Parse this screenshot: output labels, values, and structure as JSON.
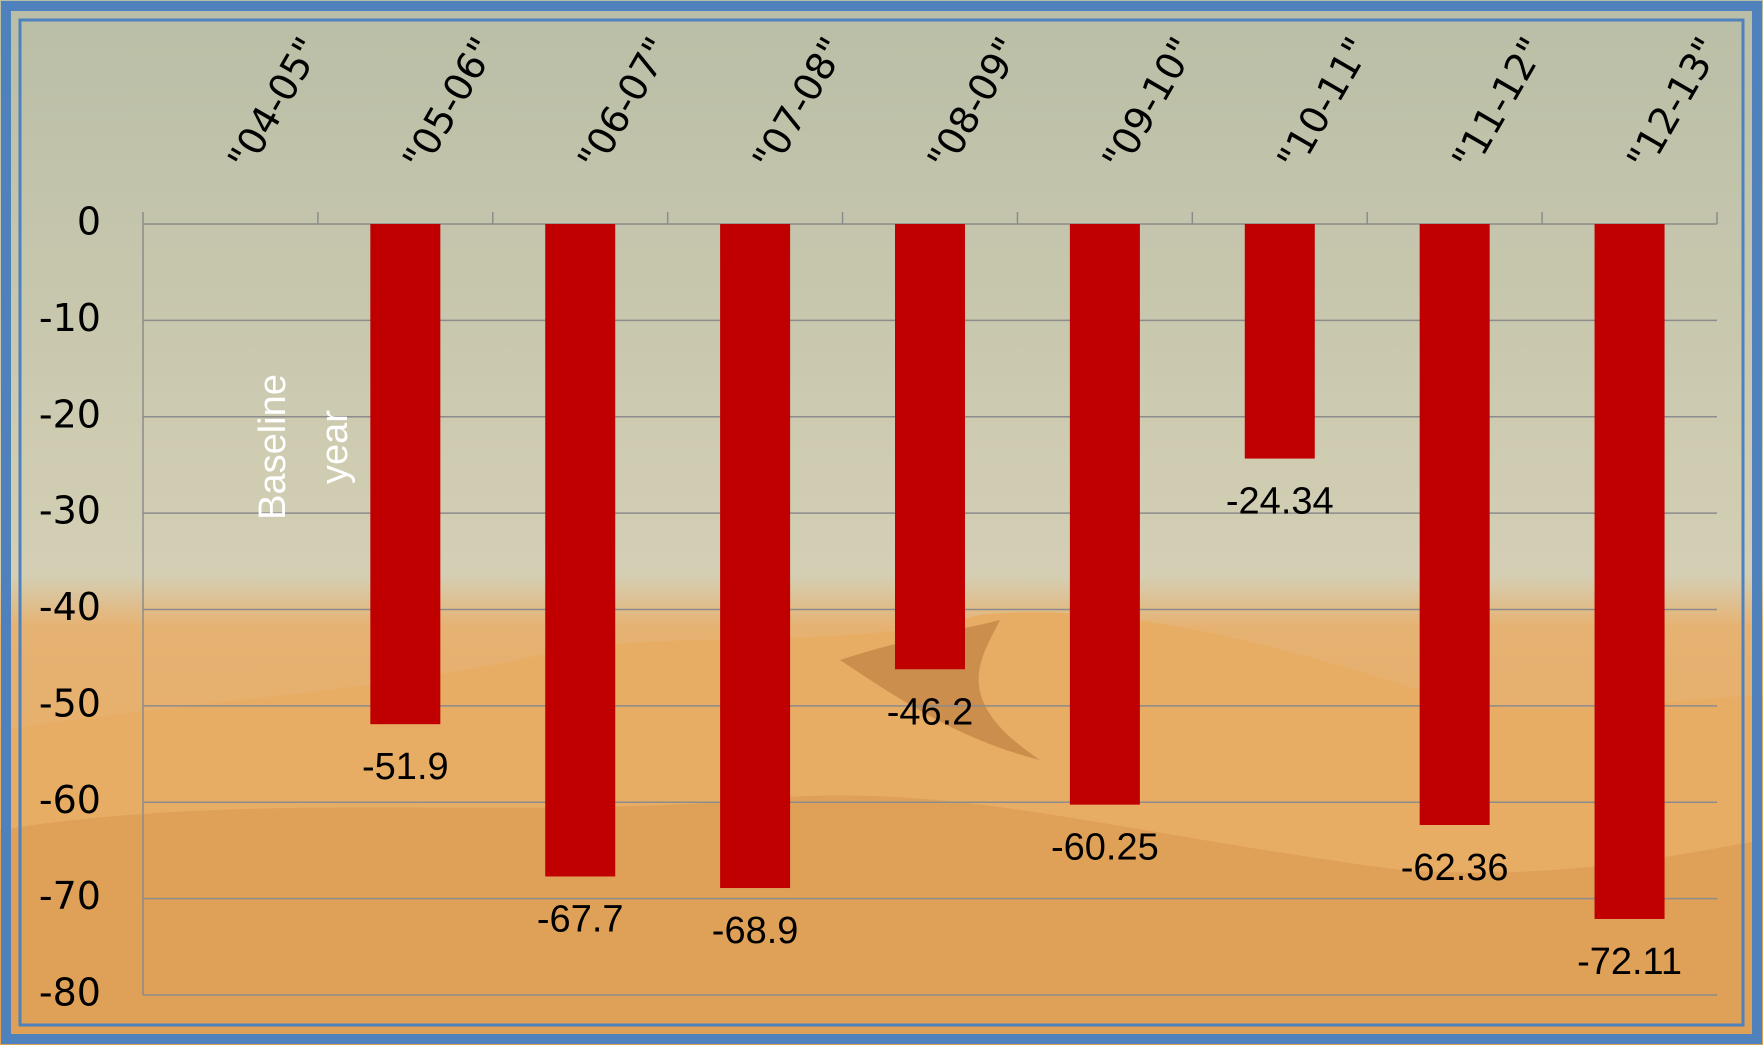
{
  "chart_data": {
    "type": "bar",
    "categories": [
      "\"04-05\"",
      "\"05-06\"",
      "\"06-07\"",
      "\"07-08\"",
      "\"08-09\"",
      "\"09-10\"",
      "\"10-11\"",
      "\"11-12\"",
      "\"12-13\""
    ],
    "values": [
      null,
      -51.9,
      -67.7,
      -68.9,
      -46.2,
      -60.25,
      -24.34,
      -62.36,
      -72.11
    ],
    "color": "#c00000",
    "ylim": [
      -80,
      0
    ],
    "yticks": [
      0,
      -10,
      -20,
      -30,
      -40,
      -50,
      -60,
      -70,
      -80
    ],
    "grid": true,
    "annotation_lines": [
      "Baseline",
      "year"
    ]
  }
}
